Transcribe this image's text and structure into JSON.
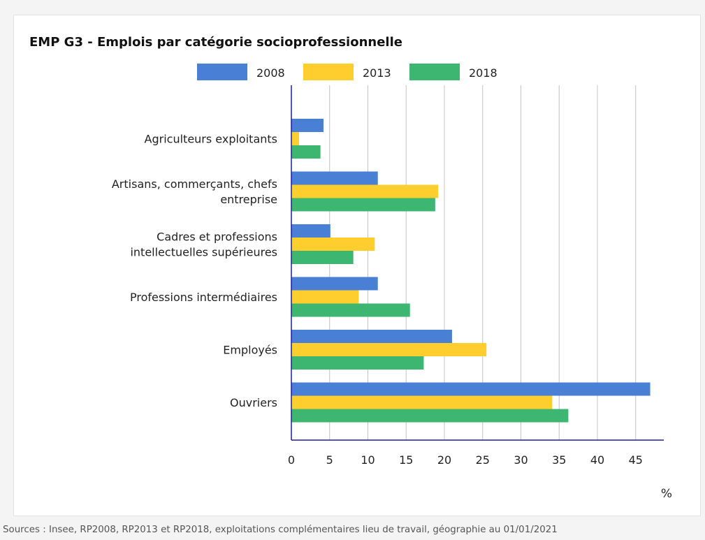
{
  "source_note": "Sources : Insee, RP2008, RP2013 et RP2018, exploitations complémentaires lieu de travail, géographie au 01/01/2021",
  "chart_data": {
    "type": "bar",
    "orientation": "horizontal",
    "title": "EMP G3 - Emplois par catégorie socioprofessionnelle",
    "categories": [
      [
        "Agriculteurs exploitants"
      ],
      [
        "Artisans, commerçants, chefs",
        "entreprise"
      ],
      [
        "Cadres et professions",
        "intellectuelles supérieures"
      ],
      [
        "Professions intermédiaires"
      ],
      [
        "Employés"
      ],
      [
        "Ouvriers"
      ]
    ],
    "series": [
      {
        "name": "2008",
        "color": "#4a7fd6",
        "values": [
          4.2,
          11.3,
          5.1,
          11.3,
          21.0,
          46.9
        ]
      },
      {
        "name": "2013",
        "color": "#fece2e",
        "values": [
          1.0,
          19.2,
          10.9,
          8.8,
          25.5,
          34.1
        ]
      },
      {
        "name": "2018",
        "color": "#3cb670",
        "values": [
          3.8,
          18.8,
          8.1,
          15.5,
          17.3,
          36.2
        ]
      }
    ],
    "xlim": [
      0,
      49
    ],
    "xticks": [
      0,
      5,
      10,
      15,
      20,
      25,
      30,
      35,
      40,
      45
    ],
    "xlabel": "%",
    "ylabel": "",
    "grid": true,
    "legend": "top"
  }
}
